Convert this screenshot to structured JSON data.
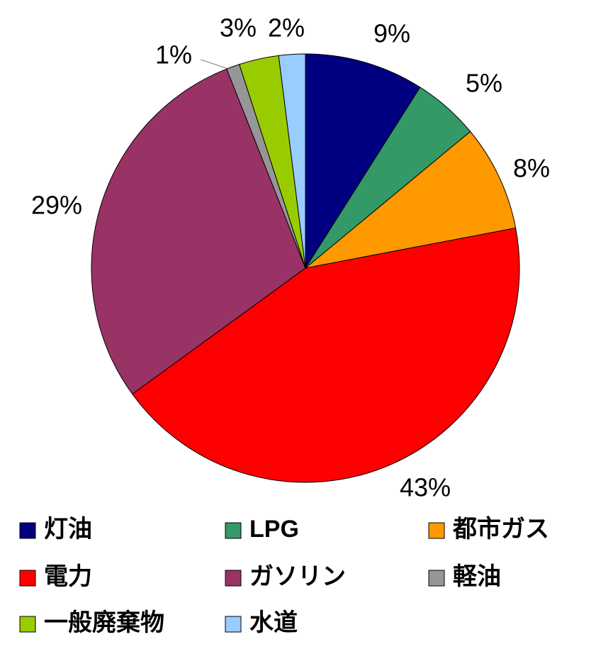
{
  "chart_data": {
    "type": "pie",
    "categories": [
      "灯油",
      "LPG",
      "都市ガス",
      "電力",
      "ガソリン",
      "軽油",
      "一般廃棄物",
      "水道"
    ],
    "values": [
      9,
      5,
      8,
      43,
      29,
      1,
      3,
      2
    ],
    "value_labels": [
      "9%",
      "5%",
      "8%",
      "43%",
      "29%",
      "1%",
      "3%",
      "2%"
    ],
    "colors": [
      "#000080",
      "#339966",
      "#ff9900",
      "#ff0000",
      "#993366",
      "#969696",
      "#99cc00",
      "#99ccff"
    ]
  }
}
